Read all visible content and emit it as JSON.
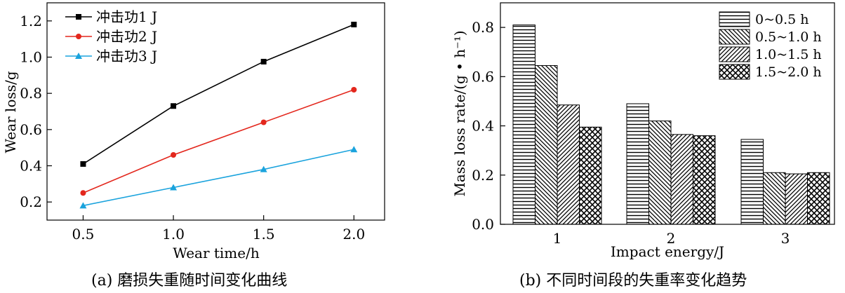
{
  "chart_data": [
    {
      "type": "line",
      "panel": "a",
      "caption": "(a) 磨损失重随时间变化曲线",
      "xlabel": "Wear time/h",
      "ylabel": "Wear loss/g",
      "x": [
        0.5,
        1.0,
        1.5,
        2.0
      ],
      "xticks": [
        "0.5",
        "1.0",
        "1.5",
        "2.0"
      ],
      "xlim": [
        0.3,
        2.17
      ],
      "ylim": [
        0.1,
        1.3
      ],
      "yticks": [
        "0.2",
        "0.4",
        "0.6",
        "0.8",
        "1.0",
        "1.2"
      ],
      "legend_position": "top-left",
      "grid": false,
      "series": [
        {
          "name": "冲击功1 J",
          "color": "#000000",
          "marker": "square",
          "values": [
            0.41,
            0.73,
            0.975,
            1.18
          ]
        },
        {
          "name": "冲击功2 J",
          "color": "#e3271d",
          "marker": "circle",
          "values": [
            0.25,
            0.46,
            0.64,
            0.82
          ]
        },
        {
          "name": "冲击功3 J",
          "color": "#1aa3dd",
          "marker": "triangle",
          "values": [
            0.18,
            0.28,
            0.38,
            0.49
          ]
        }
      ]
    },
    {
      "type": "bar",
      "panel": "b",
      "caption": "(b) 不同时间段的失重率变化趋势",
      "xlabel": "Impact energy/J",
      "ylabel": "Mass loss rate/(g • h⁻¹)",
      "categories": [
        "1",
        "2",
        "3"
      ],
      "ylim": [
        0,
        0.9
      ],
      "yticks": [
        "0.0",
        "0.2",
        "0.4",
        "0.6",
        "0.8"
      ],
      "legend_position": "top-right",
      "grid": false,
      "series": [
        {
          "name": "0~0.5 h",
          "pattern": "horizontal",
          "values": [
            0.81,
            0.49,
            0.345
          ]
        },
        {
          "name": "0.5~1.0 h",
          "pattern": "back-diagonal",
          "values": [
            0.645,
            0.42,
            0.21
          ]
        },
        {
          "name": "1.0~1.5 h",
          "pattern": "diagonal",
          "values": [
            0.485,
            0.365,
            0.205
          ]
        },
        {
          "name": "1.5~2.0 h",
          "pattern": "crosshatch",
          "values": [
            0.395,
            0.36,
            0.21
          ]
        }
      ]
    }
  ]
}
